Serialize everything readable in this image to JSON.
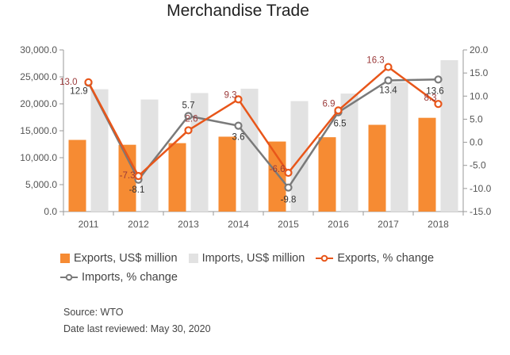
{
  "chart_data": {
    "type": "bar",
    "title": "Merchandise Trade",
    "categories": [
      "2011",
      "2012",
      "2013",
      "2014",
      "2015",
      "2016",
      "2017",
      "2018"
    ],
    "left_axis": {
      "ylim": [
        0,
        30000
      ],
      "ticks": [
        "0.0",
        "5,000.0",
        "10,000.0",
        "15,000.0",
        "20,000.0",
        "25,000.0",
        "30,000.0"
      ],
      "tick_values": [
        0,
        5000,
        10000,
        15000,
        20000,
        25000,
        30000
      ]
    },
    "right_axis": {
      "ylim": [
        -15,
        20
      ],
      "ticks": [
        "-15.0",
        "-10.0",
        "-5.0",
        "0.0",
        "5.0",
        "10.0",
        "15.0",
        "20.0"
      ],
      "tick_values": [
        -15,
        -10,
        -5,
        0,
        5,
        10,
        15,
        20
      ]
    },
    "grid": false,
    "legend_position": "bottom",
    "series": [
      {
        "name": "Exports, US$ million",
        "type": "bar",
        "axis": "left",
        "color": "#f68b33",
        "values": [
          13300,
          12400,
          12700,
          13900,
          13000,
          13800,
          16100,
          17400
        ]
      },
      {
        "name": "Imports, US$ million",
        "type": "bar",
        "axis": "left",
        "color": "#e2e2e2",
        "values": [
          22700,
          20800,
          22000,
          22800,
          20500,
          21900,
          24000,
          28100
        ]
      },
      {
        "name": "Exports, % change",
        "type": "line",
        "axis": "right",
        "color": "#e8561a",
        "label_color": "#9b3a3a",
        "values": [
          13.0,
          -7.3,
          2.6,
          9.3,
          -6.6,
          6.9,
          16.3,
          8.3
        ],
        "labels": [
          "13.0",
          "-7.3",
          "2.6",
          "9.3",
          "-6.6",
          "6.9",
          "16.3",
          "8.3"
        ]
      },
      {
        "name": "Imports, % change",
        "type": "line",
        "axis": "right",
        "color": "#7a7a7a",
        "label_color": "#333333",
        "values": [
          12.9,
          -8.1,
          5.7,
          3.6,
          -9.8,
          6.5,
          13.4,
          13.6
        ],
        "labels": [
          "12.9",
          "-8.1",
          "5.7",
          "3.6",
          "-9.8",
          "6.5",
          "13.4",
          "13.6"
        ]
      }
    ]
  },
  "footer": {
    "source": "Source: WTO",
    "reviewed": "Date last reviewed: May 30, 2020"
  }
}
